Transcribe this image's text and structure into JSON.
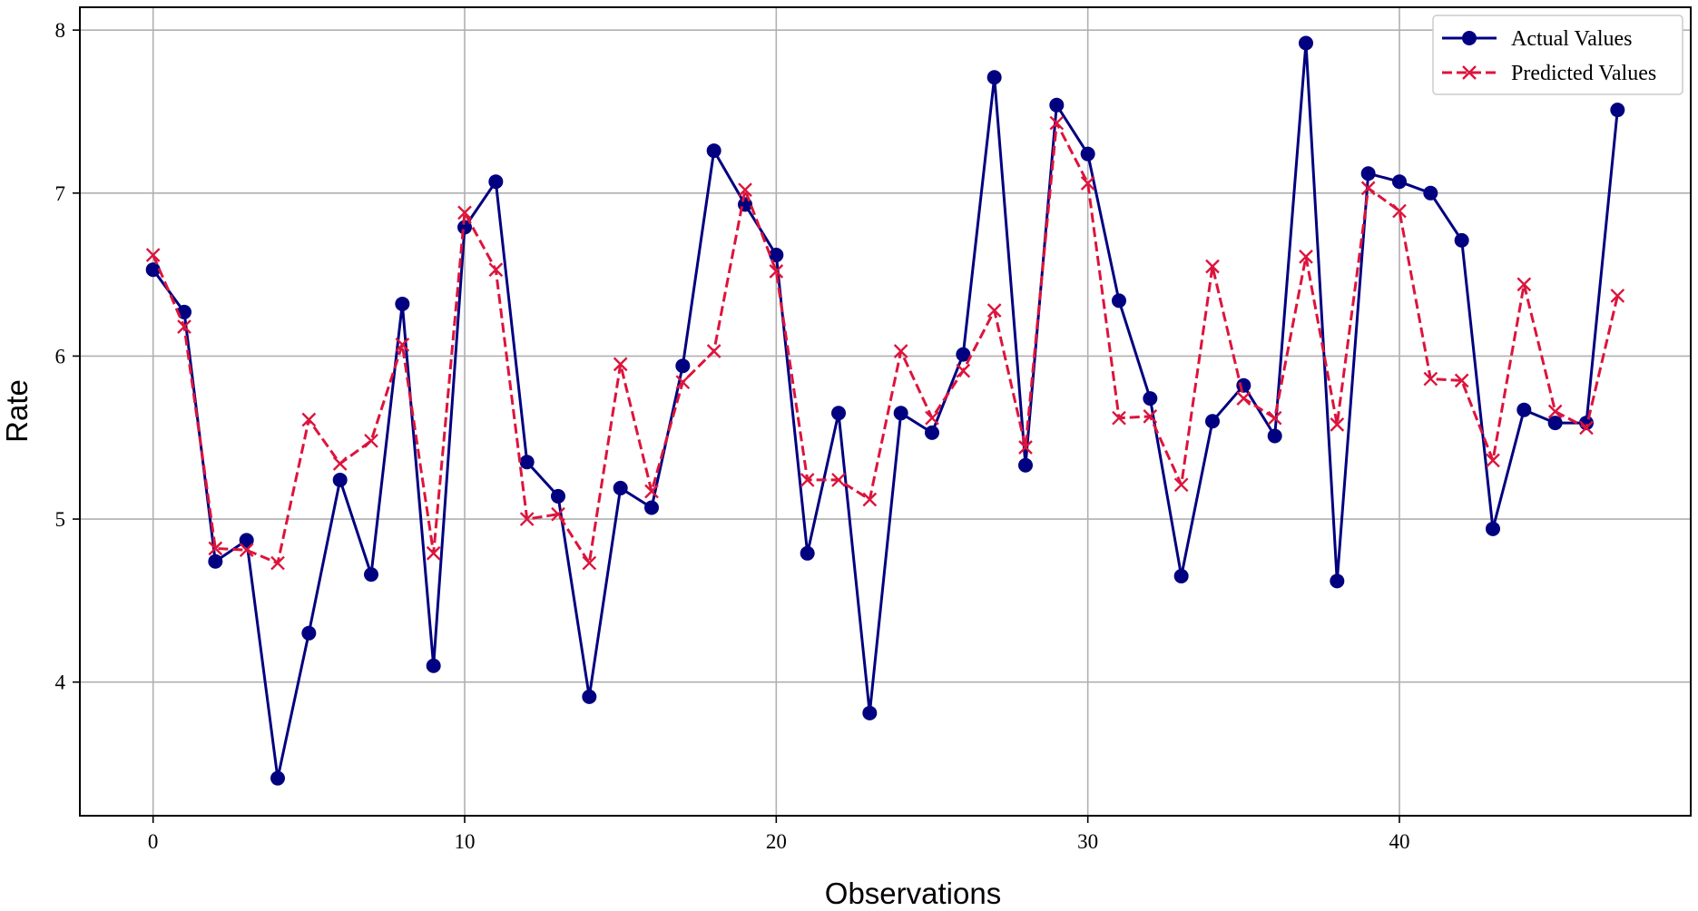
{
  "chart_data": {
    "type": "line",
    "title": "",
    "xlabel": "Observations",
    "ylabel": "Rate",
    "xlim": [
      -2.35,
      49.35
    ],
    "ylim": [
      3.18,
      8.14
    ],
    "xticks": [
      0,
      10,
      20,
      30,
      40
    ],
    "yticks": [
      4,
      5,
      6,
      7,
      8
    ],
    "grid": true,
    "legend_position": "top-right",
    "x": [
      0,
      1,
      2,
      3,
      4,
      5,
      6,
      7,
      8,
      9,
      10,
      11,
      12,
      13,
      14,
      15,
      16,
      17,
      18,
      19,
      20,
      21,
      22,
      23,
      24,
      25,
      26,
      27,
      28,
      29,
      30,
      31,
      32,
      33,
      34,
      35,
      36,
      37,
      38,
      39,
      40,
      41,
      42,
      43,
      44,
      45,
      46,
      47
    ],
    "series": [
      {
        "name": "Actual Values",
        "color": "#000080",
        "style": "solid",
        "marker": "circle",
        "values": [
          6.53,
          6.27,
          4.74,
          4.87,
          3.41,
          4.3,
          5.24,
          4.66,
          6.32,
          4.1,
          6.79,
          7.07,
          5.35,
          5.14,
          3.91,
          5.19,
          5.07,
          5.94,
          7.26,
          6.93,
          6.62,
          4.79,
          5.65,
          3.81,
          5.65,
          5.53,
          6.01,
          7.71,
          5.33,
          7.54,
          7.24,
          6.34,
          5.74,
          4.65,
          5.6,
          5.82,
          5.51,
          7.92,
          4.62,
          7.12,
          7.07,
          7.0,
          6.71,
          4.94,
          5.67,
          5.59,
          5.59,
          7.51
        ]
      },
      {
        "name": "Predicted Values",
        "color": "#dc143c",
        "style": "dashed",
        "marker": "x",
        "values": [
          6.62,
          6.18,
          4.82,
          4.81,
          4.73,
          5.61,
          5.34,
          5.48,
          6.07,
          4.79,
          6.88,
          6.53,
          5.0,
          5.03,
          4.73,
          5.95,
          5.17,
          5.84,
          6.03,
          7.02,
          6.52,
          5.24,
          5.24,
          5.12,
          6.03,
          5.62,
          5.91,
          6.28,
          5.44,
          7.43,
          7.06,
          5.62,
          5.63,
          5.21,
          6.55,
          5.74,
          5.62,
          6.61,
          5.58,
          7.03,
          6.89,
          5.86,
          5.85,
          5.36,
          6.44,
          5.66,
          5.56,
          6.37
        ]
      }
    ]
  }
}
